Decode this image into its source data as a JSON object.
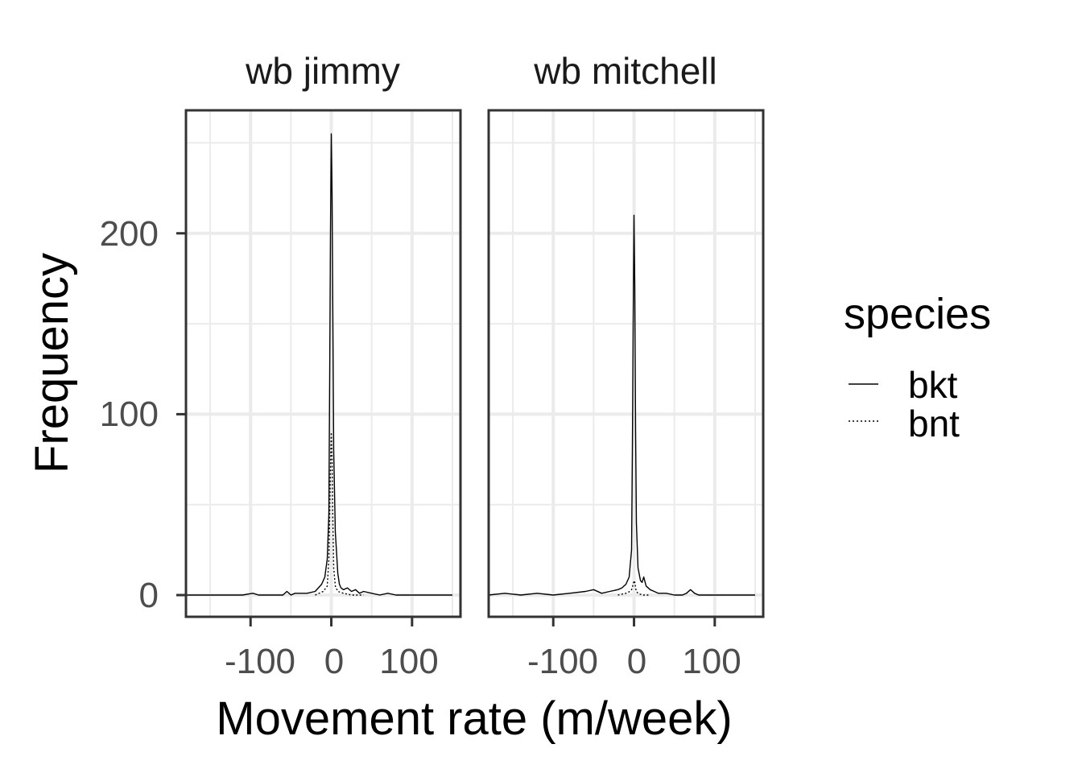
{
  "chart_data": {
    "type": "line",
    "title": "",
    "xlabel": "Movement rate (m/week)",
    "ylabel": "Frequency",
    "xlim": [
      -180,
      160
    ],
    "ylim": [
      -12,
      268
    ],
    "x_ticks": [
      -100,
      0,
      100
    ],
    "y_ticks": [
      0,
      100,
      200
    ],
    "x_tick_labels": [
      "-100",
      "0",
      "100"
    ],
    "y_tick_labels": [
      "0",
      "100",
      "200"
    ],
    "grid": true,
    "legend": {
      "title": "species",
      "position": "right",
      "items": [
        {
          "label": "bkt",
          "linetype": "solid"
        },
        {
          "label": "bnt",
          "linetype": "dotted"
        }
      ]
    },
    "facets": [
      {
        "title": "wb jimmy",
        "series": [
          {
            "name": "bkt",
            "linetype": "solid",
            "x": [
              -180,
              -150,
              -110,
              -97,
              -90,
              -60,
              -55,
              -50,
              -45,
              -30,
              -20,
              -12,
              -8,
              -5,
              -3,
              -2,
              -1,
              0,
              1,
              2,
              3,
              5,
              8,
              10,
              12,
              15,
              20,
              25,
              30,
              35,
              40,
              50,
              60,
              70,
              80,
              100,
              120,
              150
            ],
            "y": [
              0,
              0,
              0,
              1,
              0,
              0,
              2,
              0,
              1,
              1,
              2,
              6,
              10,
              20,
              45,
              120,
              200,
              255,
              220,
              150,
              80,
              35,
              12,
              6,
              4,
              3,
              4,
              2,
              3,
              1,
              2,
              1,
              0,
              1,
              0,
              0,
              0,
              0
            ]
          },
          {
            "name": "bnt",
            "linetype": "dotted",
            "x": [
              -20,
              -10,
              -5,
              -3,
              -1,
              0,
              1,
              2,
              3,
              5,
              8,
              15,
              25,
              40
            ],
            "y": [
              0,
              2,
              5,
              20,
              70,
              90,
              75,
              40,
              15,
              5,
              2,
              1,
              0,
              0
            ]
          }
        ]
      },
      {
        "title": "wb mitchell",
        "series": [
          {
            "name": "bkt",
            "linetype": "solid",
            "x": [
              -180,
              -160,
              -140,
              -120,
              -100,
              -80,
              -60,
              -50,
              -40,
              -30,
              -20,
              -15,
              -10,
              -6,
              -3,
              -2,
              -1,
              0,
              1,
              2,
              3,
              5,
              8,
              10,
              12,
              15,
              20,
              25,
              30,
              40,
              50,
              60,
              65,
              70,
              75,
              80,
              100,
              120,
              150
            ],
            "y": [
              0,
              1,
              0,
              1,
              0,
              1,
              2,
              3,
              1,
              2,
              3,
              4,
              6,
              10,
              25,
              80,
              150,
              210,
              170,
              90,
              40,
              15,
              8,
              7,
              10,
              5,
              3,
              2,
              1,
              1,
              0,
              0,
              1,
              3,
              1,
              0,
              0,
              0,
              0
            ]
          },
          {
            "name": "bnt",
            "linetype": "dotted",
            "x": [
              -20,
              -10,
              -5,
              -3,
              -1,
              0,
              1,
              2,
              3,
              5,
              10,
              20
            ],
            "y": [
              0,
              1,
              2,
              3,
              6,
              8,
              7,
              4,
              2,
              1,
              0,
              0
            ]
          }
        ]
      }
    ]
  }
}
